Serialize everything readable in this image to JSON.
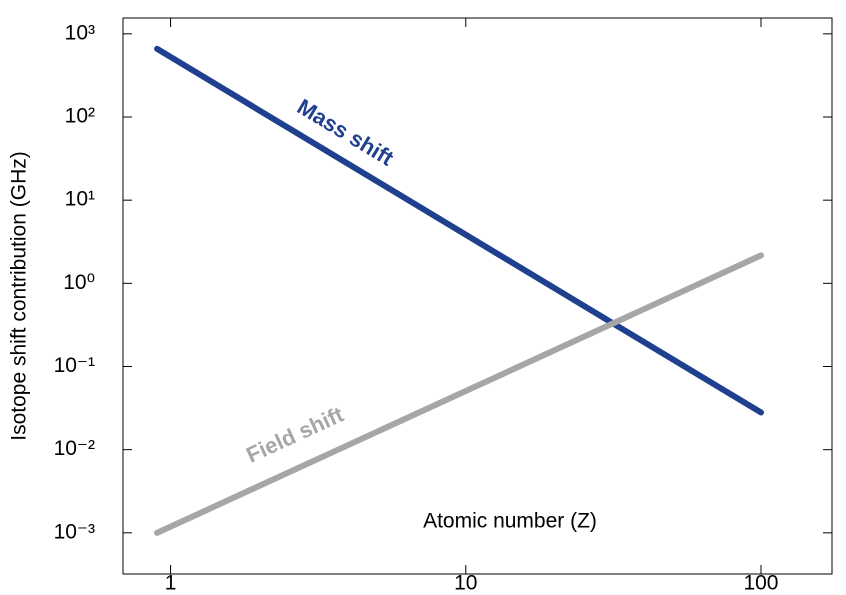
{
  "chart_data": {
    "type": "line",
    "log_x": true,
    "log_y": true,
    "xlabel": "Atomic number (Z)",
    "ylabel": "Isotope shift contribution (GHz)",
    "x": [
      0.9,
      100
    ],
    "series": [
      {
        "name": "Mass shift",
        "color": "#1f3f8f",
        "values": [
          660,
          0.028
        ]
      },
      {
        "name": "Field shift",
        "color": "#a6a6a6",
        "values": [
          0.001,
          2.17
        ]
      }
    ],
    "xlim": [
      0.69,
      174
    ],
    "ylim": [
      0.00032,
      1550
    ],
    "xticks": [
      1,
      10,
      100
    ],
    "yticks": [
      {
        "value": 1000,
        "label": "10³"
      },
      {
        "value": 100,
        "label": "10²"
      },
      {
        "value": 10,
        "label": "10¹"
      },
      {
        "value": 1,
        "label": "10⁰"
      },
      {
        "value": 0.1,
        "label": "10⁻¹"
      },
      {
        "value": 0.01,
        "label": "10⁻²"
      },
      {
        "value": 0.001,
        "label": "10⁻³"
      }
    ]
  }
}
